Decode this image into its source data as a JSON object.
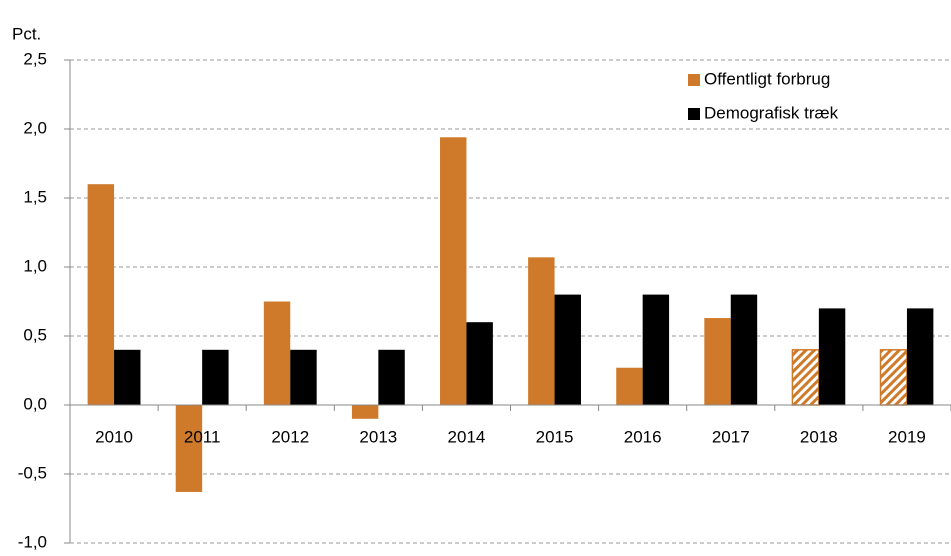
{
  "chart_data": {
    "type": "bar",
    "y_label": "Pct.",
    "categories": [
      "2010",
      "2011",
      "2012",
      "2013",
      "2014",
      "2015",
      "2016",
      "2017",
      "2018",
      "2019"
    ],
    "series": [
      {
        "name": "Offentligt forbrug",
        "color": "#cf7a2a",
        "values": [
          1.6,
          -0.63,
          0.75,
          -0.1,
          1.94,
          1.07,
          0.27,
          0.63,
          0.4,
          0.4
        ],
        "hatched": [
          false,
          false,
          false,
          false,
          false,
          false,
          false,
          false,
          true,
          true
        ]
      },
      {
        "name": "Demografisk træk",
        "color": "#000000",
        "values": [
          0.4,
          0.4,
          0.4,
          0.4,
          0.6,
          0.8,
          0.8,
          0.8,
          0.7,
          0.7
        ],
        "hatched": [
          false,
          false,
          false,
          false,
          false,
          false,
          false,
          false,
          false,
          false
        ]
      }
    ],
    "ylim": [
      -1,
      2.5
    ],
    "yticks": [
      {
        "value": -1,
        "label": "-1,0"
      },
      {
        "value": -0.5,
        "label": "-0,5"
      },
      {
        "value": 0,
        "label": "0,0"
      },
      {
        "value": 0.5,
        "label": "0,5"
      },
      {
        "value": 1,
        "label": "1,0"
      },
      {
        "value": 1.5,
        "label": "1,5"
      },
      {
        "value": 2,
        "label": "2,0"
      },
      {
        "value": 2.5,
        "label": "2,5"
      }
    ],
    "grid": true,
    "legend": "upper right"
  }
}
